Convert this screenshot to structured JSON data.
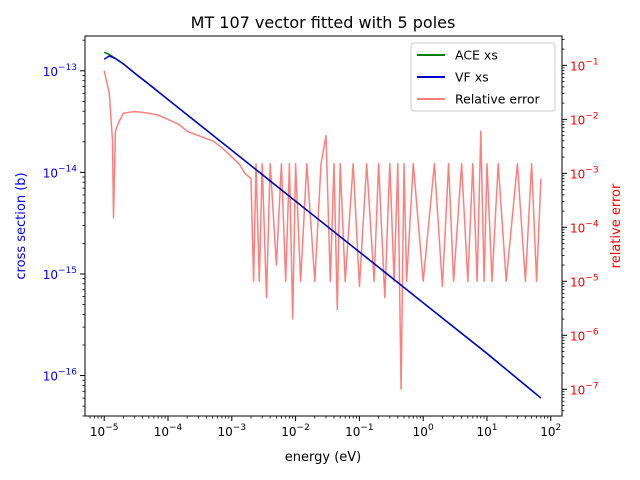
{
  "chart_data": {
    "type": "line",
    "title": "MT 107 vector fitted with 5 poles",
    "xlabel": "energy (eV)",
    "ylabel": "cross section (b)",
    "ylabel_right": "relative error",
    "xscale": "log",
    "yscale": "log",
    "yscale_right": "log",
    "xlim": [
      5e-06,
      150
    ],
    "ylim": [
      4e-17,
      2.2e-13
    ],
    "ylim_right": [
      3.2e-08,
      0.35
    ],
    "grid": false,
    "legend": "top-right",
    "x_ticks": [
      {
        "value": 1e-05,
        "base": "10",
        "exp": "−5"
      },
      {
        "value": 0.0001,
        "base": "10",
        "exp": "−4"
      },
      {
        "value": 0.001,
        "base": "10",
        "exp": "−3"
      },
      {
        "value": 0.01,
        "base": "10",
        "exp": "−2"
      },
      {
        "value": 0.1,
        "base": "10",
        "exp": "−1"
      },
      {
        "value": 1,
        "base": "10",
        "exp": "0"
      },
      {
        "value": 10,
        "base": "10",
        "exp": "1"
      },
      {
        "value": 100,
        "base": "10",
        "exp": "2"
      }
    ],
    "y_ticks": [
      {
        "value": 1e-13,
        "base": "10",
        "exp": "−13"
      },
      {
        "value": 1e-14,
        "base": "10",
        "exp": "−14"
      },
      {
        "value": 1e-15,
        "base": "10",
        "exp": "−15"
      },
      {
        "value": 1e-16,
        "base": "10",
        "exp": "−16"
      }
    ],
    "y_ticks_right": [
      {
        "value": 0.1,
        "base": "10",
        "exp": "−1"
      },
      {
        "value": 0.01,
        "base": "10",
        "exp": "−2"
      },
      {
        "value": 0.001,
        "base": "10",
        "exp": "−3"
      },
      {
        "value": 0.0001,
        "base": "10",
        "exp": "−4"
      },
      {
        "value": 1e-05,
        "base": "10",
        "exp": "−5"
      },
      {
        "value": 1e-06,
        "base": "10",
        "exp": "−6"
      },
      {
        "value": 1e-07,
        "base": "10",
        "exp": "−7"
      }
    ],
    "series": [
      {
        "name": "ACE xs",
        "color": "#008000",
        "axis": "left",
        "x": [
          1e-05,
          1.2e-05,
          1.5e-05,
          2e-05,
          3e-05,
          5e-05,
          0.0001,
          0.001,
          0.01,
          0.1,
          1,
          10,
          70
        ],
        "y": [
          1.52e-13,
          1.45e-13,
          1.32e-13,
          1.17e-13,
          9.5e-14,
          7.4e-14,
          5.2e-14,
          1.65e-14,
          5.2e-15,
          1.65e-15,
          5.2e-16,
          1.65e-16,
          6e-17
        ]
      },
      {
        "name": "VF xs",
        "color": "#0000cc",
        "axis": "left",
        "x": [
          1e-05,
          1.2e-05,
          1.5e-05,
          2e-05,
          3e-05,
          5e-05,
          0.0001,
          0.001,
          0.01,
          0.1,
          1,
          10,
          70
        ],
        "y": [
          1.3e-13,
          1.4e-13,
          1.32e-13,
          1.17e-13,
          9.5e-14,
          7.4e-14,
          5.2e-14,
          1.65e-14,
          5.2e-15,
          1.65e-15,
          5.2e-16,
          1.65e-16,
          6e-17
        ]
      },
      {
        "name": "Relative error",
        "color": "#ff7f7f",
        "axis": "right",
        "x": [
          1e-05,
          1.2e-05,
          1.35e-05,
          1.4e-05,
          1.5e-05,
          1.7e-05,
          2e-05,
          3e-05,
          5e-05,
          7e-05,
          0.0001,
          0.00015,
          0.0002,
          0.0003,
          0.0005,
          0.0007,
          0.001,
          0.0013,
          0.0016,
          0.002,
          0.0022,
          0.0024,
          0.0027,
          0.003,
          0.0035,
          0.004,
          0.005,
          0.006,
          0.007,
          0.008,
          0.009,
          0.01,
          0.012,
          0.015,
          0.02,
          0.025,
          0.03,
          0.035,
          0.04,
          0.045,
          0.05,
          0.06,
          0.08,
          0.1,
          0.13,
          0.17,
          0.2,
          0.25,
          0.3,
          0.35,
          0.4,
          0.45,
          0.5,
          0.55,
          0.7,
          1,
          1.5,
          2,
          2.5,
          3,
          4,
          5,
          6,
          7,
          8,
          9,
          10,
          12,
          15,
          20,
          30,
          40,
          50,
          60,
          70
        ],
        "y": [
          0.08,
          0.03,
          0.004,
          0.00015,
          0.006,
          0.009,
          0.013,
          0.014,
          0.013,
          0.012,
          0.01,
          0.008,
          0.006,
          0.005,
          0.004,
          0.003,
          0.002,
          0.0015,
          0.001,
          0.0008,
          1e-05,
          0.0015,
          1e-05,
          0.0015,
          5e-06,
          0.0015,
          2e-05,
          0.0015,
          1e-05,
          0.0015,
          2e-06,
          0.0015,
          1e-05,
          0.0015,
          1e-05,
          0.0015,
          0.005,
          1e-05,
          0.0015,
          3e-06,
          0.0015,
          1e-05,
          0.0015,
          8e-06,
          0.0015,
          1e-05,
          0.0015,
          5e-06,
          0.0015,
          1e-05,
          0.0015,
          1e-07,
          0.0015,
          1e-05,
          0.0015,
          1e-05,
          0.0015,
          8e-06,
          0.0015,
          1e-05,
          0.0015,
          1e-05,
          0.0015,
          1e-05,
          0.006,
          1e-05,
          0.0015,
          1e-05,
          0.0015,
          1e-05,
          0.0015,
          1e-05,
          0.0015,
          1e-05,
          0.0008
        ]
      }
    ]
  },
  "colors": {
    "left_axis": "#0000ff",
    "right_axis": "#ff0000"
  }
}
